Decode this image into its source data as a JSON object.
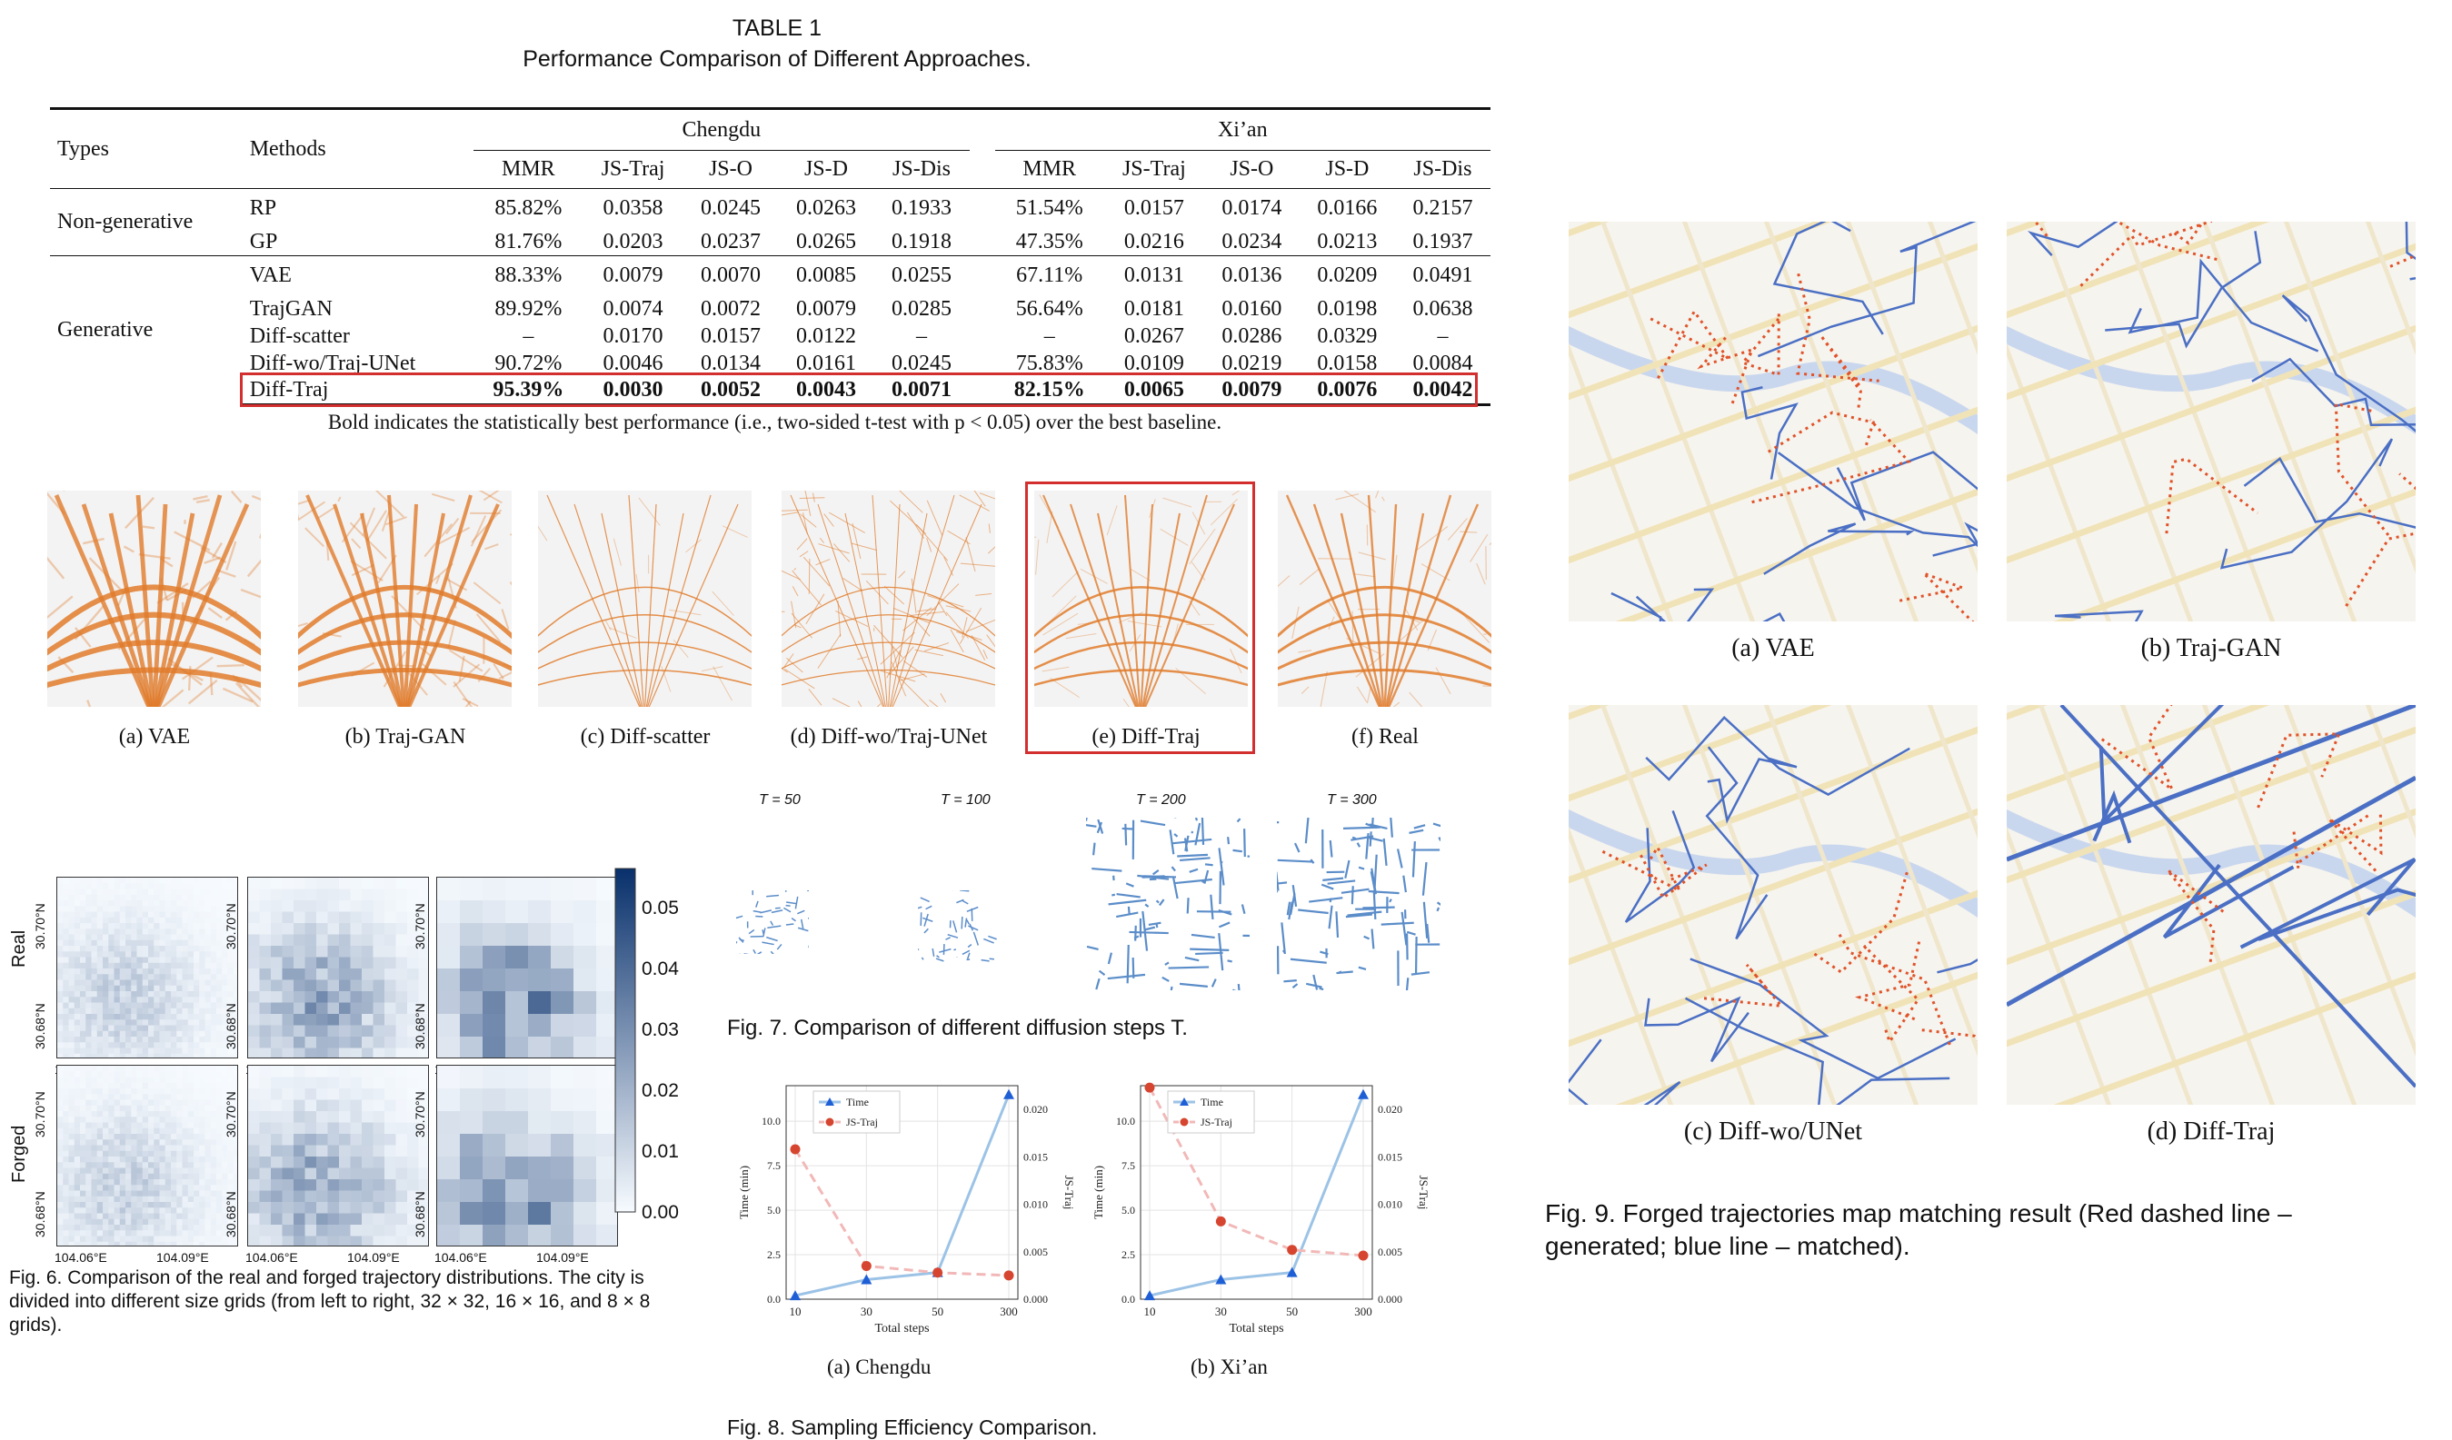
{
  "table": {
    "caption_line1": "TABLE 1",
    "caption_line2": "Performance Comparison of Different Approaches.",
    "col_types": "Types",
    "col_methods": "Methods",
    "city1": "Chengdu",
    "city2": "Xi’an",
    "metrics": [
      "MMR",
      "JS-Traj",
      "JS-O",
      "JS-D",
      "JS-Dis"
    ],
    "groups": [
      {
        "type": "Non-generative",
        "rows": [
          {
            "method": "RP",
            "values": [
              "85.82%",
              "0.0358",
              "0.0245",
              "0.0263",
              "0.1933",
              "51.54%",
              "0.0157",
              "0.0174",
              "0.0166",
              "0.2157"
            ]
          },
          {
            "method": "GP",
            "values": [
              "81.76%",
              "0.0203",
              "0.0237",
              "0.0265",
              "0.1918",
              "47.35%",
              "0.0216",
              "0.0234",
              "0.0213",
              "0.1937"
            ]
          }
        ]
      },
      {
        "type": "Generative",
        "rows": [
          {
            "method": "VAE",
            "values": [
              "88.33%",
              "0.0079",
              "0.0070",
              "0.0085",
              "0.0255",
              "67.11%",
              "0.0131",
              "0.0136",
              "0.0209",
              "0.0491"
            ]
          },
          {
            "method": "TrajGAN",
            "values": [
              "89.92%",
              "0.0074",
              "0.0072",
              "0.0079",
              "0.0285",
              "56.64%",
              "0.0181",
              "0.0160",
              "0.0198",
              "0.0638"
            ]
          },
          {
            "method": "Diff-scatter",
            "values": [
              "–",
              "0.0170",
              "0.0157",
              "0.0122",
              "–",
              "–",
              "0.0267",
              "0.0286",
              "0.0329",
              "–"
            ]
          },
          {
            "method": "Diff-wo/Traj-UNet",
            "values": [
              "90.72%",
              "0.0046",
              "0.0134",
              "0.0161",
              "0.0245",
              "75.83%",
              "0.0109",
              "0.0219",
              "0.0158",
              "0.0084"
            ]
          },
          {
            "method": "Diff-Traj",
            "values": [
              "95.39%",
              "0.0030",
              "0.0052",
              "0.0043",
              "0.0071",
              "82.15%",
              "0.0065",
              "0.0079",
              "0.0076",
              "0.0042"
            ]
          }
        ]
      }
    ],
    "note": "Bold indicates the statistically best performance (i.e., two-sided t-test with p < 0.05) over the best baseline."
  },
  "fig5": {
    "captions": [
      "(a) VAE",
      "(b) Traj-GAN",
      "(c) Diff-scatter",
      "(d) Diff-wo/Traj-UNet",
      "(e) Diff-Traj",
      "(f) Real"
    ],
    "color": "#e07b2a"
  },
  "fig6": {
    "row_labels": [
      "Real",
      "Forged"
    ],
    "xticks": [
      "104.06°E",
      "104.09°E"
    ],
    "yticks": [
      "30.68°N",
      "30.70°N"
    ],
    "colorbar_ticks": [
      "0.05",
      "0.04",
      "0.03",
      "0.02",
      "0.01",
      "0.00"
    ],
    "caption": "Fig. 6. Comparison of the real and forged trajectory distributions. The city is divided into different size grids (from left to right, 32 × 32, 16 × 16, and 8 × 8 grids)."
  },
  "fig7": {
    "labels": [
      "T = 50",
      "T = 100",
      "T = 200",
      "T = 300"
    ],
    "caption": "Fig. 7. Comparison of different diffusion steps T.",
    "color": "#5b8dc9"
  },
  "fig8": {
    "title": "Fig. 8. Sampling Efficiency Comparison.",
    "captions": [
      "(a) Chengdu",
      "(b) Xi’an"
    ],
    "xlabel": "Total steps",
    "ylabel_left": "Time (min)",
    "ylabel_right": "JS-Traj",
    "legend": [
      "Time",
      "JS-Traj"
    ],
    "yticks_left": [
      "0.0",
      "2.5",
      "5.0",
      "7.5",
      "10.0"
    ],
    "yticks_right": [
      "0.000",
      "0.005",
      "0.010",
      "0.015",
      "0.020"
    ]
  },
  "fig9": {
    "captions": [
      "(a) VAE",
      "(b) Traj-GAN",
      "(c) Diff-wo/UNet",
      "(d) Diff-Traj"
    ],
    "caption": "Fig. 9. Forged trajectories map matching result (Red dashed line – generated; blue line – matched).",
    "red": "#e0532a",
    "blue": "#4a6fc4"
  },
  "chart_data": [
    {
      "type": "line",
      "title": "",
      "xlabel": "Total steps",
      "ylabel": "Time (min)",
      "categories": [
        "10",
        "30",
        "50",
        "300"
      ],
      "series": [
        {
          "name": "Time",
          "values": [
            0.2,
            1.1,
            1.5,
            11.5
          ]
        },
        {
          "name": "JS-Traj",
          "values": [
            0.0158,
            0.0035,
            0.0028,
            0.0025
          ]
        }
      ],
      "ylim": [
        0,
        12
      ],
      "ylim_right": [
        0,
        0.0225
      ]
    },
    {
      "type": "line",
      "title": "",
      "xlabel": "Total steps",
      "ylabel": "Time (min)",
      "categories": [
        "10",
        "30",
        "50",
        "300"
      ],
      "series": [
        {
          "name": "Time",
          "values": [
            0.2,
            1.1,
            1.5,
            11.5
          ]
        },
        {
          "name": "JS-Traj",
          "values": [
            0.0223,
            0.0082,
            0.0052,
            0.0046
          ]
        }
      ],
      "ylim": [
        0,
        12
      ],
      "ylim_right": [
        0,
        0.0225
      ]
    }
  ]
}
